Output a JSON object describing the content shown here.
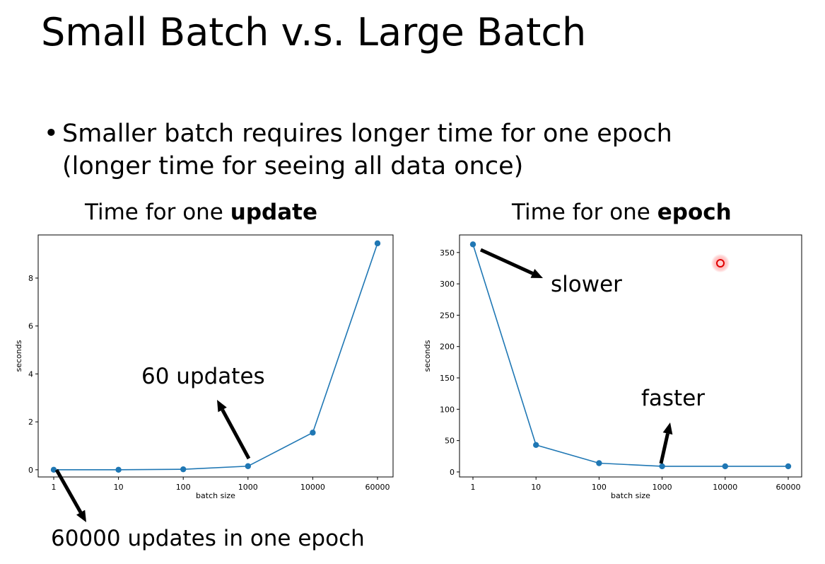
{
  "slide": {
    "title": "Small Batch v.s. Large Batch",
    "bullet_symbol": "•",
    "bullet_line1": "Smaller batch requires longer time for one epoch",
    "bullet_line2": "(longer time for seeing all data once)"
  },
  "left_heading": {
    "prefix": "Time for one ",
    "bold": "update"
  },
  "right_heading": {
    "prefix": "Time for one ",
    "bold": "epoch"
  },
  "annotations": {
    "left_updates": "60 updates",
    "left_bottom": "60000 updates in one epoch",
    "right_slower": "slower",
    "right_faster": "faster"
  },
  "chart_data": [
    {
      "type": "line",
      "title": "Time for one update",
      "xlabel": "batch size",
      "ylabel": "seconds",
      "categories": [
        "1",
        "10",
        "100",
        "1000",
        "10000",
        "60000"
      ],
      "values": [
        0.0,
        0.0,
        0.02,
        0.15,
        1.55,
        9.45
      ],
      "ylim": [
        -0.3,
        9.8
      ],
      "yticks": [
        0,
        2,
        4,
        6,
        8
      ],
      "color": "#1f77b4",
      "marker": "circle",
      "grid": false
    },
    {
      "type": "line",
      "title": "Time for one epoch",
      "xlabel": "batch size",
      "ylabel": "seconds",
      "categories": [
        "1",
        "10",
        "100",
        "1000",
        "10000",
        "60000"
      ],
      "values": [
        363,
        43,
        14,
        9,
        9,
        9
      ],
      "ylim": [
        -8,
        378
      ],
      "yticks": [
        0,
        50,
        100,
        150,
        200,
        250,
        300,
        350
      ],
      "color": "#1f77b4",
      "marker": "circle",
      "grid": false
    }
  ]
}
